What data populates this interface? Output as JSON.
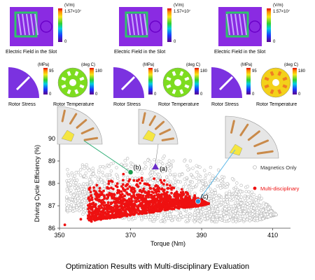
{
  "colors": {
    "field_fill": "#8a2be2",
    "field_edge": "#6a00c8",
    "slot_band": "#2ec46a",
    "stress_fill": "#7b32e0",
    "temp_fill": "#7ddc1f",
    "temp_hot": "#f3d11a",
    "temp_orange": "#f07d22",
    "magnetics_marker": "#b5b5b5",
    "multi_marker": "#ee1111",
    "point_b": "#1e9b4f",
    "point_a": "#6a2ec8",
    "point_c": "#2a8fd8",
    "leader_green": "#35b07a",
    "leader_blue": "#5bb8e8",
    "axis": "#444444",
    "grid": "#e2e2e2"
  },
  "top_panels": {
    "field_unit": "(V/m)",
    "field_max": "1.57×10⁷",
    "field_min": "0",
    "field_caption": "Electric Field in the Slot",
    "stress_unit": "(MPa)",
    "stress_max": "95",
    "stress_min": "0",
    "stress_caption": "Rotor Stress",
    "temp_unit": "(deg C)",
    "temp_max": "180",
    "temp_min": "0",
    "temp_caption": "Rotor Temperature"
  },
  "chart_data": {
    "type": "scatter",
    "title": "",
    "xlabel": "Torque (Nm)",
    "ylabel": "Driving Cycle Efficiency (%)",
    "xlim": [
      350,
      415
    ],
    "ylim": [
      86,
      90
    ],
    "xticks": [
      350,
      370,
      390,
      410
    ],
    "yticks": [
      86,
      87,
      88,
      89,
      90
    ],
    "grid": false,
    "legend_position": "right",
    "series": [
      {
        "name": "Magnetics Only",
        "marker": "open-circle",
        "color": "#b5b5b5",
        "region": "dense cloud bounded above by Pareto front",
        "pareto_front": [
          [
            352,
            88.7
          ],
          [
            360,
            89.0
          ],
          [
            370,
            89.25
          ],
          [
            378,
            89.3
          ],
          [
            385,
            89.15
          ],
          [
            392,
            88.85
          ],
          [
            398,
            88.4
          ],
          [
            404,
            87.8
          ],
          [
            409,
            87.05
          ],
          [
            411,
            86.6
          ]
        ],
        "lower_edge": [
          [
            353,
            86.7
          ],
          [
            362,
            86.5
          ],
          [
            375,
            86.3
          ],
          [
            390,
            86.25
          ],
          [
            405,
            86.3
          ],
          [
            411,
            86.6
          ]
        ]
      },
      {
        "name": "Multi-disciplinary",
        "marker": "filled-circle",
        "color": "#ee1111",
        "region": "dense cloud concentrated between 358 and 392 Nm",
        "pareto_front": [
          [
            358,
            88.05
          ],
          [
            364,
            88.3
          ],
          [
            370,
            88.55
          ],
          [
            375,
            88.4
          ],
          [
            380,
            88.1
          ],
          [
            385,
            87.75
          ],
          [
            390,
            87.3
          ],
          [
            392,
            87.1
          ]
        ],
        "lower_edge": [
          [
            352,
            86.2
          ],
          [
            360,
            86.35
          ],
          [
            372,
            86.6
          ],
          [
            382,
            86.85
          ],
          [
            390,
            87.0
          ],
          [
            392,
            87.1
          ]
        ]
      }
    ],
    "annotations": [
      {
        "label": "(a)",
        "x": 377,
        "y": 88.75,
        "marker": "triangle",
        "color": "#6a2ec8"
      },
      {
        "label": "(b)",
        "x": 370,
        "y": 88.5,
        "marker": "filled-circle",
        "color": "#1e9b4f"
      },
      {
        "label": "(c)",
        "x": 389,
        "y": 87.2,
        "marker": "filled-circle",
        "color": "#2a8fd8"
      }
    ]
  },
  "caption": "Optimization Results with Multi-disciplinary Evaluation"
}
